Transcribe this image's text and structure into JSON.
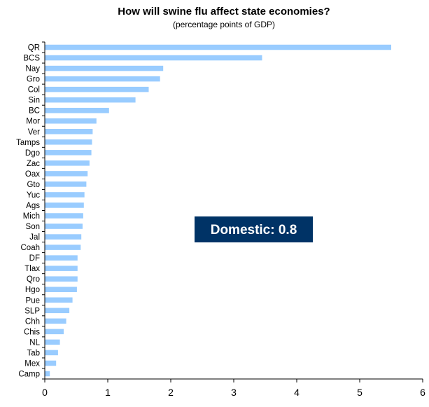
{
  "chart_data": {
    "type": "bar",
    "orientation": "horizontal",
    "title": "How will swine flu affect state economies?",
    "subtitle": "(percentage points of GDP)",
    "xlabel": "",
    "ylabel": "",
    "xlim": [
      0,
      6
    ],
    "xticks": [
      "0",
      "1",
      "2",
      "3",
      "4",
      "5",
      "6"
    ],
    "grid": false,
    "bar_color": "#99CCFF",
    "categories": [
      "QR",
      "BCS",
      "Nay",
      "Gro",
      "Col",
      "Sin",
      "BC",
      "Mor",
      "Ver",
      "Tamps",
      "Dgo",
      "Zac",
      "Oax",
      "Gto",
      "Yuc",
      "Ags",
      "Mich",
      "Son",
      "Jal",
      "Coah",
      "DF",
      "Tlax",
      "Qro",
      "Hgo",
      "Pue",
      "SLP",
      "Chh",
      "Chis",
      "NL",
      "Tab",
      "Mex",
      "Camp"
    ],
    "values": [
      5.5,
      3.45,
      1.88,
      1.83,
      1.65,
      1.44,
      1.02,
      0.82,
      0.76,
      0.75,
      0.74,
      0.71,
      0.68,
      0.66,
      0.63,
      0.62,
      0.61,
      0.6,
      0.58,
      0.57,
      0.52,
      0.52,
      0.52,
      0.51,
      0.44,
      0.39,
      0.34,
      0.3,
      0.24,
      0.21,
      0.18,
      0.08
    ],
    "annotation": {
      "text": "Domestic: 0.8",
      "background": "#003366",
      "color": "#FFFFFF"
    }
  }
}
